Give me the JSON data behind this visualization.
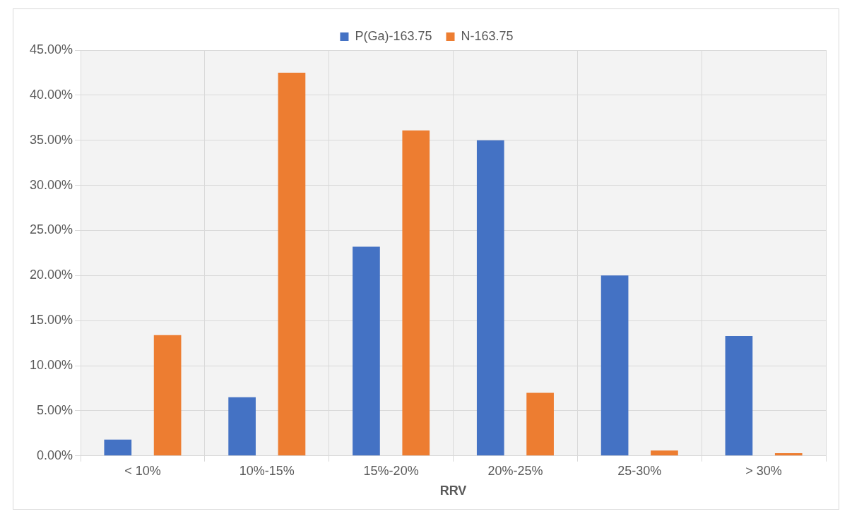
{
  "chart_data": {
    "type": "bar",
    "xlabel": "RRV",
    "categories": [
      "< 10%",
      "10%-15%",
      "15%-20%",
      "20%-25%",
      "25-30%",
      "> 30%"
    ],
    "series": [
      {
        "name": "P(Ga)-163.75",
        "color": "#4472c4",
        "values": [
          1.8,
          6.5,
          23.2,
          35.0,
          20.0,
          13.3
        ]
      },
      {
        "name": "N-163.75",
        "color": "#ed7d31",
        "values": [
          13.4,
          42.5,
          36.1,
          7.0,
          0.6,
          0.3
        ]
      }
    ],
    "ylim": [
      0,
      45
    ],
    "yticks": [
      {
        "value": 0,
        "label": "0.00%"
      },
      {
        "value": 5,
        "label": "5.00%"
      },
      {
        "value": 10,
        "label": "10.00%"
      },
      {
        "value": 15,
        "label": "15.00%"
      },
      {
        "value": 20,
        "label": "20.00%"
      },
      {
        "value": 25,
        "label": "25.00%"
      },
      {
        "value": 30,
        "label": "30.00%"
      },
      {
        "value": 35,
        "label": "35.00%"
      },
      {
        "value": 40,
        "label": "40.00%"
      },
      {
        "value": 45,
        "label": "45.00%"
      }
    ],
    "grid": true,
    "legend": "top"
  }
}
